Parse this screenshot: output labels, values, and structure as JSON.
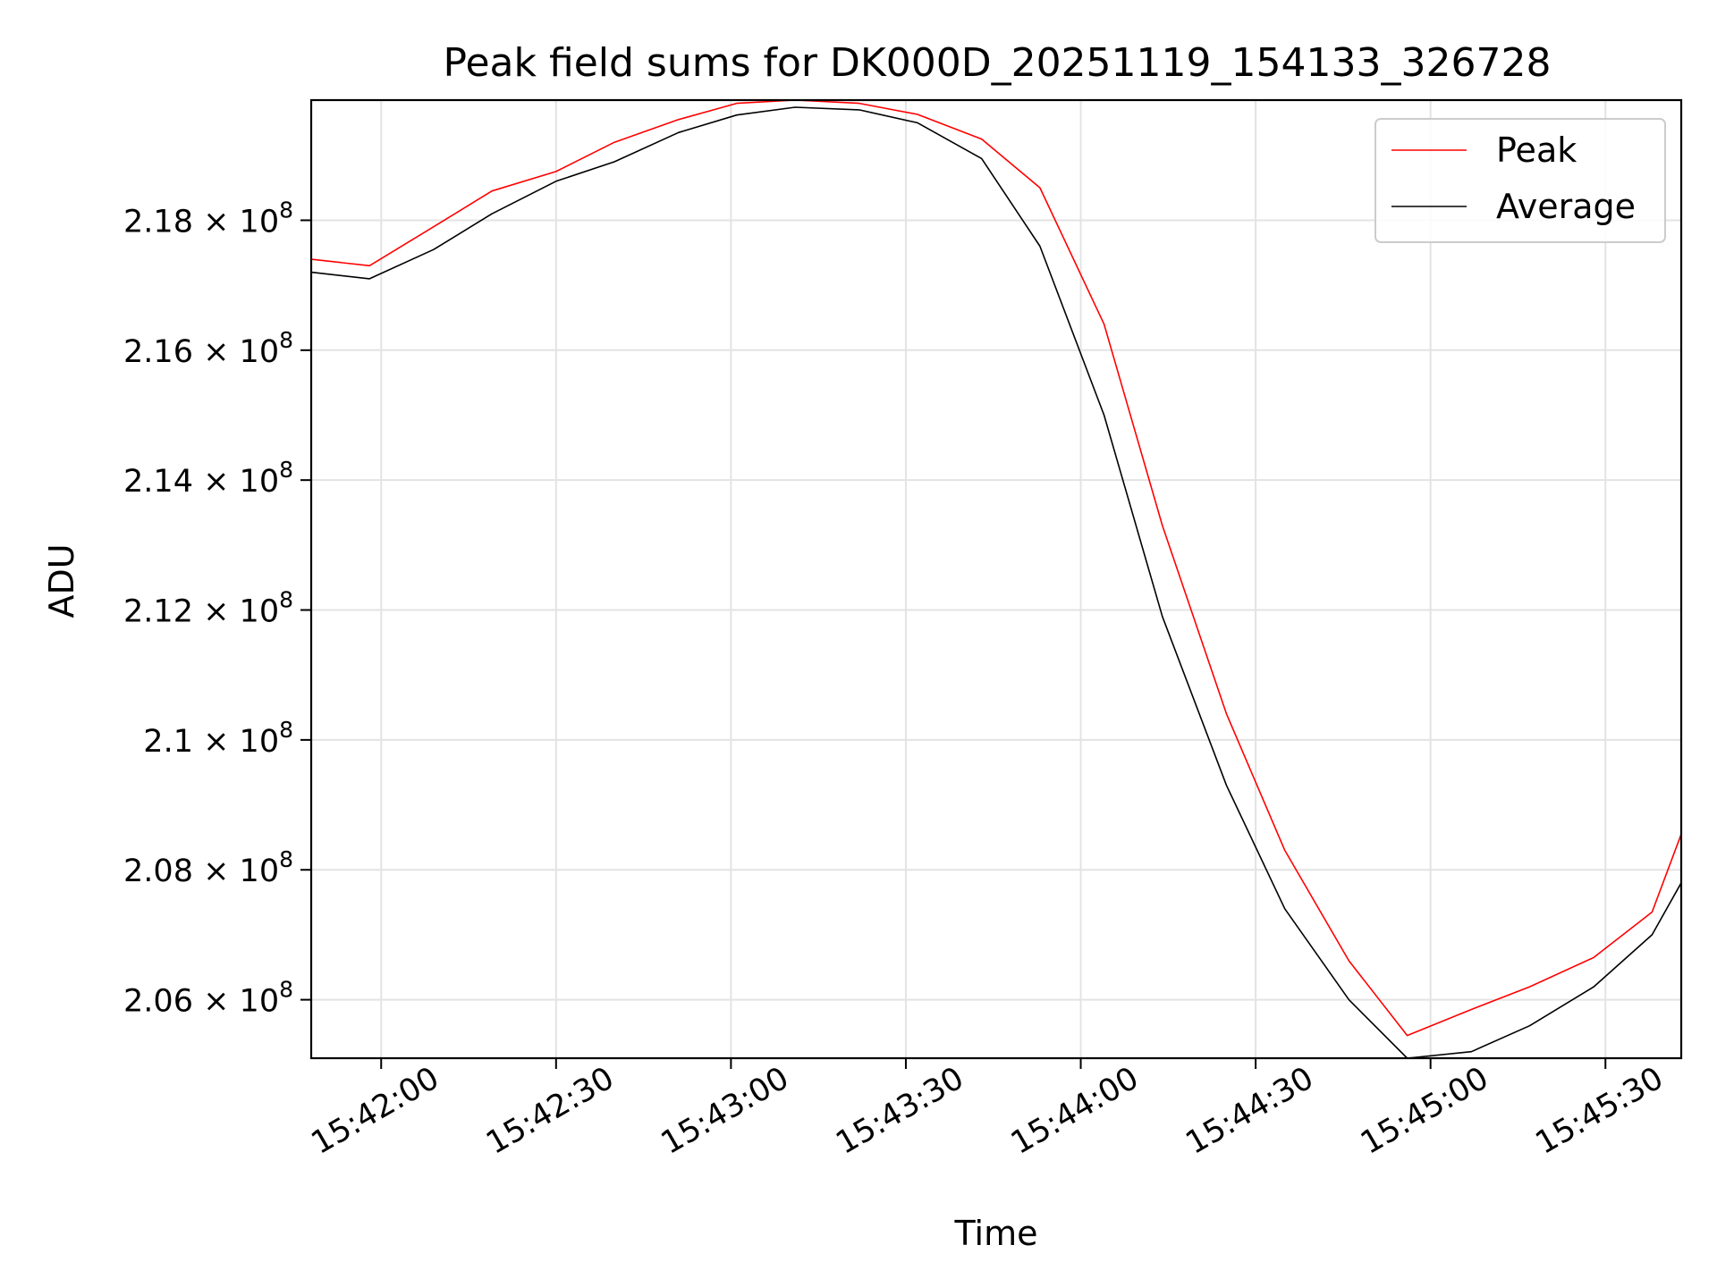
{
  "chart_data": {
    "type": "line",
    "title": "Peak field sums for DK000D_20251119_154133_326728",
    "xlabel": "Time",
    "ylabel": "ADU",
    "grid": true,
    "legend_position": "top-right",
    "x_ticks": [
      "15:42:00",
      "15:42:30",
      "15:43:00",
      "15:43:30",
      "15:44:00",
      "15:44:30",
      "15:45:00",
      "15:45:30"
    ],
    "y_ticks": [
      {
        "value": 206000000,
        "mantissa": "2.06",
        "base": "10",
        "exponent": "8"
      },
      {
        "value": 208000000,
        "mantissa": "2.08",
        "base": "10",
        "exponent": "8"
      },
      {
        "value": 210000000,
        "mantissa": "2.1",
        "base": "10",
        "exponent": "8"
      },
      {
        "value": 212000000,
        "mantissa": "2.12",
        "base": "10",
        "exponent": "8"
      },
      {
        "value": 214000000,
        "mantissa": "2.14",
        "base": "10",
        "exponent": "8"
      },
      {
        "value": 216000000,
        "mantissa": "2.16",
        "base": "10",
        "exponent": "8"
      },
      {
        "value": 218000000,
        "mantissa": "2.18",
        "base": "10",
        "exponent": "8"
      }
    ],
    "xlim": [
      "15:41:48",
      "15:45:43"
    ],
    "ylim": [
      205100000,
      219850000
    ],
    "x": [
      "15:41:48",
      "15:41:58",
      "15:42:09",
      "15:42:19",
      "15:42:30",
      "15:42:40",
      "15:42:51",
      "15:43:01",
      "15:43:11",
      "15:43:22",
      "15:43:32",
      "15:43:43",
      "15:43:53",
      "15:44:04",
      "15:44:14",
      "15:44:25",
      "15:44:35",
      "15:44:46",
      "15:44:56",
      "15:45:07",
      "15:45:17",
      "15:45:28",
      "15:45:38",
      "15:45:43"
    ],
    "series": [
      {
        "name": "Peak",
        "color": "#ff0000",
        "values": [
          217400000,
          217300000,
          217900000,
          218450000,
          218750000,
          219200000,
          219550000,
          219800000,
          219850000,
          219800000,
          219630000,
          219250000,
          218500000,
          216400000,
          213300000,
          210400000,
          208300000,
          206600000,
          205450000,
          205850000,
          206200000,
          206650000,
          207350000,
          208550000
        ]
      },
      {
        "name": "Average",
        "color": "#000000",
        "values": [
          217200000,
          217100000,
          217550000,
          218100000,
          218600000,
          218900000,
          219350000,
          219620000,
          219740000,
          219700000,
          219500000,
          218950000,
          217600000,
          215000000,
          211900000,
          209300000,
          207400000,
          206000000,
          205100000,
          205200000,
          205600000,
          206200000,
          207000000,
          207800000
        ]
      }
    ]
  }
}
